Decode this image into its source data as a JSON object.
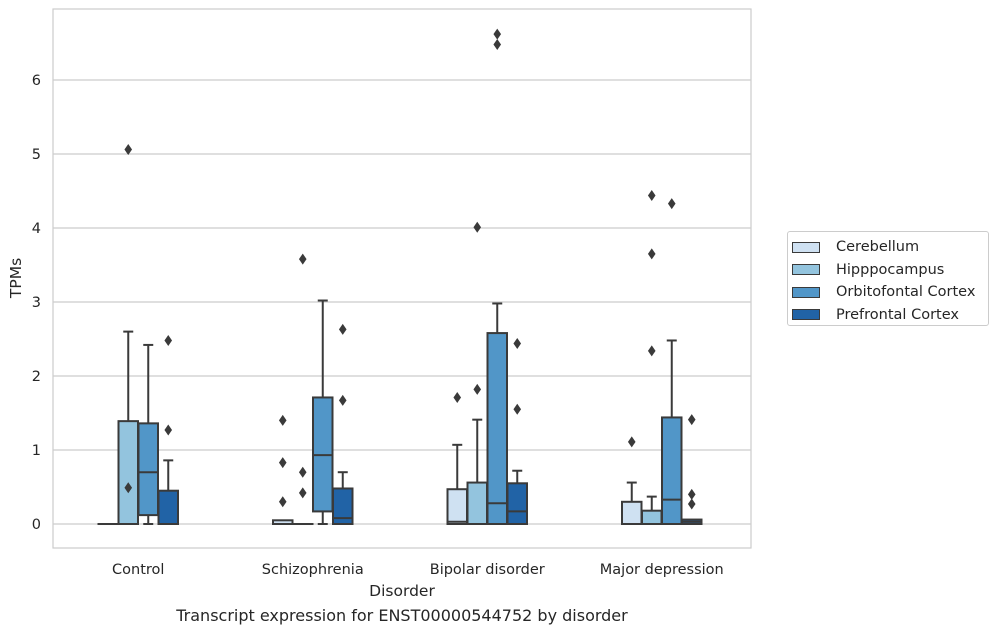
{
  "chart_data": {
    "type": "box",
    "xlabel": "Disorder",
    "ylabel": "TPMs",
    "ylim": [
      -0.32,
      7.0
    ],
    "yticks": [
      0,
      1,
      2,
      3,
      4,
      5,
      6
    ],
    "grid": "horizontal",
    "legend_position": "right",
    "categories": [
      "Control",
      "Schizophrenia",
      "Bipolar disorder",
      "Major depression"
    ],
    "series": [
      {
        "name": "Cerebellum",
        "color": "#cfe1f2",
        "boxes": [
          {
            "q1": 0,
            "median": 0,
            "q3": 0,
            "whislo": 0,
            "whishi": 0,
            "fliers": []
          },
          {
            "q1": 0,
            "median": 0,
            "q3": 0.05,
            "whislo": 0,
            "whishi": 0.05,
            "fliers": [
              0.3,
              0.83,
              1.4
            ]
          },
          {
            "q1": 0,
            "median": 0.03,
            "q3": 0.47,
            "whislo": 0,
            "whishi": 1.07,
            "fliers": [
              1.71
            ]
          },
          {
            "q1": 0,
            "median": 0,
            "q3": 0.3,
            "whislo": 0,
            "whishi": 0.56,
            "fliers": [
              1.11
            ]
          }
        ]
      },
      {
        "name": "Hipppocampus",
        "color": "#93c4de",
        "boxes": [
          {
            "q1": 0,
            "median": 0,
            "q3": 1.39,
            "whislo": 0,
            "whishi": 2.6,
            "fliers": [
              0.49,
              5.06
            ]
          },
          {
            "q1": 0,
            "median": 0,
            "q3": 0,
            "whislo": 0,
            "whishi": 0,
            "fliers": [
              0.42,
              0.7,
              3.58
            ]
          },
          {
            "q1": 0,
            "median": 0,
            "q3": 0.56,
            "whislo": 0,
            "whishi": 1.41,
            "fliers": [
              1.82,
              4.01
            ]
          },
          {
            "q1": 0,
            "median": 0,
            "q3": 0.18,
            "whislo": 0,
            "whishi": 0.37,
            "fliers": [
              2.34,
              3.65,
              4.44
            ]
          }
        ]
      },
      {
        "name": "Orbitofontal Cortex",
        "color": "#5196c8",
        "boxes": [
          {
            "q1": 0.12,
            "median": 0.7,
            "q3": 1.36,
            "whislo": 0,
            "whishi": 2.42,
            "fliers": []
          },
          {
            "q1": 0.17,
            "median": 0.93,
            "q3": 1.71,
            "whislo": 0,
            "whishi": 3.02,
            "fliers": []
          },
          {
            "q1": 0,
            "median": 0.28,
            "q3": 2.58,
            "whislo": 0,
            "whishi": 2.98,
            "fliers": [
              6.48,
              6.62
            ]
          },
          {
            "q1": 0,
            "median": 0.33,
            "q3": 1.44,
            "whislo": 0,
            "whishi": 2.48,
            "fliers": [
              4.33
            ]
          }
        ]
      },
      {
        "name": "Prefrontal Cortex",
        "color": "#2163a6",
        "boxes": [
          {
            "q1": 0,
            "median": 0,
            "q3": 0.45,
            "whislo": 0,
            "whishi": 0.86,
            "fliers": [
              1.27,
              2.48
            ]
          },
          {
            "q1": 0,
            "median": 0.08,
            "q3": 0.48,
            "whislo": 0,
            "whishi": 0.7,
            "fliers": [
              1.67,
              2.63
            ]
          },
          {
            "q1": 0,
            "median": 0.17,
            "q3": 0.55,
            "whislo": 0,
            "whishi": 0.72,
            "fliers": [
              1.55,
              2.44
            ]
          },
          {
            "q1": 0,
            "median": 0.03,
            "q3": 0.06,
            "whislo": 0,
            "whishi": 0.06,
            "fliers": [
              0.27,
              0.4,
              1.41
            ]
          }
        ]
      }
    ]
  },
  "caption": "Transcript expression for ENST00000544752 by disorder"
}
